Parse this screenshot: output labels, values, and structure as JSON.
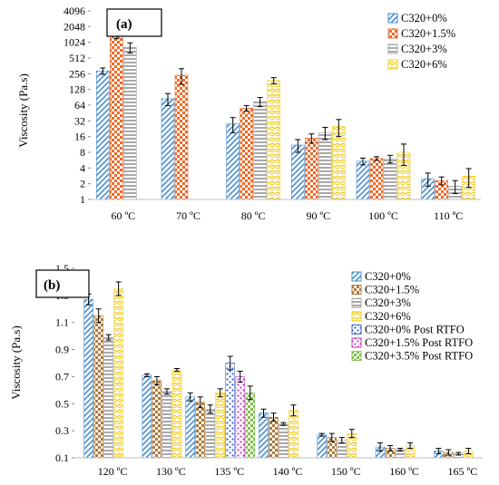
{
  "chart_data": [
    {
      "type": "bar",
      "panel_label": "(a)",
      "scale": "log2",
      "ylabel": "Viscosity (Pa.s)",
      "ylim": [
        1,
        4096
      ],
      "yticks": [
        "1",
        "2",
        "4",
        "8",
        "16",
        "32",
        "64",
        "128",
        "256",
        "512",
        "1024",
        "2048",
        "4096"
      ],
      "categories": [
        "60 ºC",
        "70 ºC",
        "80 ºC",
        "90 ºC",
        "100 ºC",
        "110 ºC"
      ],
      "legend_position": "top-right",
      "series": [
        {
          "name": "C320+0%",
          "color": "#4a8fd0",
          "pattern": "diag",
          "values": [
            290,
            85,
            28,
            11,
            5.4,
            2.5
          ],
          "errors": [
            40,
            22,
            9,
            3,
            0.8,
            0.7
          ]
        },
        {
          "name": "C320+1.5%",
          "color": "#ec6a2a",
          "pattern": "check",
          "values": [
            1450,
            240,
            56,
            15,
            6.1,
            2.3
          ],
          "errors": [
            250,
            80,
            7,
            3,
            0.5,
            0.4
          ]
        },
        {
          "name": "C320+3%",
          "color": "#a9a9a9",
          "pattern": "horiz",
          "values": [
            820,
            null,
            75,
            19,
            6.0,
            1.8
          ],
          "errors": [
            180,
            null,
            15,
            5,
            1.0,
            0.5
          ]
        },
        {
          "name": "C320+6%",
          "color": "#f2cf2c",
          "pattern": "wave",
          "values": [
            null,
            null,
            190,
            25,
            8,
            2.8
          ],
          "errors": [
            null,
            null,
            25,
            9,
            3.5,
            1.1
          ]
        }
      ]
    },
    {
      "type": "bar",
      "panel_label": "(b)",
      "ylabel": "Viscosity (Pa.s)",
      "ylim": [
        0.1,
        1.5
      ],
      "yticks": [
        "0.1",
        "0.3",
        "0.5",
        "0.7",
        "0.9",
        "1.1",
        "1.3",
        "1.5"
      ],
      "categories": [
        "120 ºC",
        "130 ºC",
        "135 ºC",
        "140 ºC",
        "150 ºC",
        "160 ºC",
        "165 ºC"
      ],
      "legend_position": "top-right",
      "series": [
        {
          "name": "C320+0%",
          "color": "#4a8fd0",
          "pattern": "diag",
          "values": [
            1.27,
            0.71,
            0.55,
            0.43,
            0.27,
            0.18,
            0.15
          ],
          "errors": [
            0.04,
            0.01,
            0.03,
            0.03,
            0.01,
            0.03,
            0.02
          ]
        },
        {
          "name": "C320+1.5%",
          "color": "#b07a3a",
          "pattern": "check",
          "values": [
            1.15,
            0.67,
            0.51,
            0.4,
            0.25,
            0.17,
            0.14
          ],
          "errors": [
            0.05,
            0.03,
            0.04,
            0.03,
            0.03,
            0.02,
            0.02
          ]
        },
        {
          "name": "C320+3%",
          "color": "#a9a9a9",
          "pattern": "horiz",
          "values": [
            0.99,
            0.59,
            0.46,
            0.35,
            0.23,
            0.16,
            0.13
          ],
          "errors": [
            0.02,
            0.02,
            0.03,
            0.01,
            0.02,
            0.01,
            0.01
          ]
        },
        {
          "name": "C320+6%",
          "color": "#f2cf2c",
          "pattern": "wave",
          "values": [
            1.35,
            0.75,
            0.58,
            0.45,
            0.28,
            0.19,
            0.15
          ],
          "errors": [
            0.05,
            0.01,
            0.03,
            0.04,
            0.03,
            0.02,
            0.02
          ]
        },
        {
          "name": "C320+0% Post RTFO",
          "color": "#3b63c9",
          "pattern": "dots",
          "values": [
            null,
            null,
            0.8,
            null,
            null,
            null,
            null
          ],
          "errors": [
            null,
            null,
            0.05,
            null,
            null,
            null,
            null
          ]
        },
        {
          "name": "C320+1.5% Post RTFO",
          "color": "#c43fc4",
          "pattern": "dots",
          "values": [
            null,
            null,
            0.7,
            null,
            null,
            null,
            null
          ],
          "errors": [
            null,
            null,
            0.04,
            null,
            null,
            null,
            null
          ]
        },
        {
          "name": "C320+3.5% Post RTFO",
          "color": "#7fc24a",
          "pattern": "check",
          "values": [
            null,
            null,
            0.58,
            null,
            null,
            null,
            null
          ],
          "errors": [
            null,
            null,
            0.05,
            null,
            null,
            null,
            null
          ]
        }
      ]
    }
  ]
}
